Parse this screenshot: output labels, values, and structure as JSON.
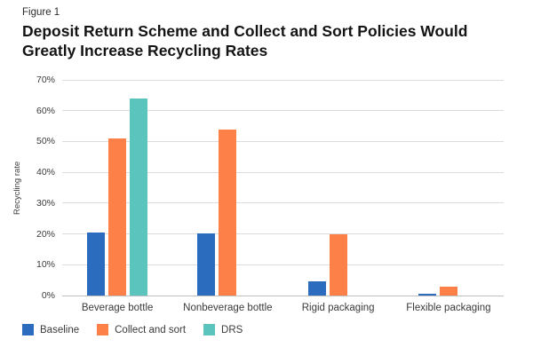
{
  "figure": {
    "label": "Figure 1",
    "title": "Deposit Return Scheme and Collect and Sort Policies Would Greatly Increase Recycling Rates"
  },
  "chart_data": {
    "type": "bar",
    "categories": [
      "Beverage bottle",
      "Nonbeverage bottle",
      "Rigid packaging",
      "Flexible packaging"
    ],
    "series": [
      {
        "name": "Baseline",
        "color": "#2b6cbe",
        "values": [
          20.5,
          20.2,
          4.5,
          0.7
        ]
      },
      {
        "name": "Collect and sort",
        "color": "#fd8049",
        "values": [
          51,
          54,
          20,
          3
        ]
      },
      {
        "name": "DRS",
        "color": "#5ac4bd",
        "values": [
          64,
          null,
          null,
          null
        ]
      }
    ],
    "title": "Deposit Return Scheme and Collect and Sort Policies Would Greatly Increase Recycling Rates",
    "xlabel": "",
    "ylabel": "Recycling rate",
    "ylim": [
      0,
      70
    ],
    "yticks": [
      0,
      10,
      20,
      30,
      40,
      50,
      60,
      70
    ],
    "ytick_suffix": "%",
    "grid": true,
    "legend_position": "bottom-left"
  }
}
